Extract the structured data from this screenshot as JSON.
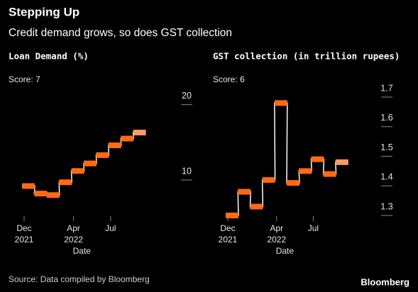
{
  "title": "Stepping Up",
  "subtitle": "Credit demand grows, so does GST collection",
  "source": "Source: Data compiled by Bloomberg",
  "brand": "Bloomberg",
  "chart_data": [
    {
      "type": "step",
      "title": "Loan Demand (%)",
      "annotation": "Score: 7",
      "x_label": "Date",
      "categories": [
        "Dec",
        null,
        null,
        null,
        "Apr",
        null,
        null,
        "Jul",
        null,
        null
      ],
      "category_years": [
        "2021",
        null,
        null,
        null,
        "2022",
        null,
        null,
        null,
        null,
        null
      ],
      "values": [
        9.2,
        8.2,
        8.0,
        9.7,
        11.2,
        12.2,
        13.3,
        14.6,
        15.5,
        16.3
      ],
      "ylim": [
        5.3,
        21
      ],
      "yticks": [
        10,
        20
      ],
      "color": "#ff6a13",
      "last_color": "#ff9a66"
    },
    {
      "type": "step",
      "title": "GST collection (in trillion rupees)",
      "annotation": "Score: 6",
      "x_label": "Date",
      "categories": [
        "Dec",
        null,
        null,
        null,
        "Apr",
        null,
        null,
        "Jul",
        null,
        null
      ],
      "category_years": [
        "2021",
        null,
        null,
        null,
        "2022",
        null,
        null,
        null,
        null,
        null
      ],
      "values": [
        1.3,
        1.38,
        1.33,
        1.42,
        1.68,
        1.41,
        1.45,
        1.49,
        1.44,
        1.48
      ],
      "ylim": [
        1.3,
        1.7
      ],
      "yticks": [
        1.3,
        1.4,
        1.5,
        1.6,
        1.7
      ],
      "color": "#ff6a13",
      "last_color": "#ff9a66"
    }
  ]
}
